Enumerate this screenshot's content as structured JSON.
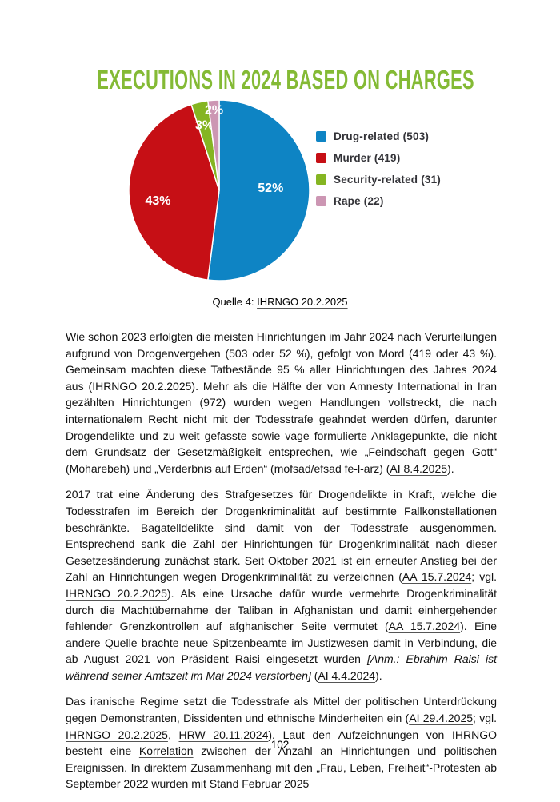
{
  "page_number": "102",
  "caption": {
    "prefix": "Quelle 4: ",
    "link": "IHRNGO 20.2.2025"
  },
  "chart_data": {
    "type": "pie",
    "title": "EXECUTIONS IN 2024 BASED ON CHARGES",
    "title_color": "#84ba35",
    "direction": "clockwise",
    "start_angle_deg": 0,
    "label_color": "#ffffff",
    "legend_position": "right",
    "legend_text_color": "#333338",
    "slices": [
      {
        "label": "Drug-related",
        "count": 503,
        "pct": 52,
        "color": "#0e84c4"
      },
      {
        "label": "Murder",
        "count": 419,
        "pct": 43,
        "color": "#c60f15"
      },
      {
        "label": "Security-related",
        "count": 31,
        "pct": 3,
        "color": "#85b522"
      },
      {
        "label": "Rape",
        "count": 22,
        "pct": 2,
        "color": "#cc96b3"
      }
    ]
  },
  "paragraphs": [
    {
      "segments": [
        {
          "t": "Wie schon 2023 erfolgten die meisten Hinrichtungen im Jahr 2024 nach Verurteilungen aufgrund von Drogenvergehen (503 oder 52 %), gefolgt von Mord (419 oder 43 %). Gemeinsam machten diese Tatbestände 95 % aller Hinrichtungen des Jahres 2024 aus ("
        },
        {
          "t": "IHRNGO 20.2.2025",
          "s": "link"
        },
        {
          "t": "). Mehr als die Hälfte der von Amnesty International in Iran gezählten "
        },
        {
          "t": "Hinrichtungen",
          "s": "link"
        },
        {
          "t": " (972) wurden we­gen Handlungen vollstreckt, die nach internationalem Recht nicht mit der Todesstrafe geahndet werden dürfen, darunter Drogendelikte und zu weit gefasste sowie vage formulierte Anklage­punkte, die nicht dem Grundsatz der Gesetzmäßigkeit entsprechen, wie „Feindschaft gegen Gott“ (Moharebeh) und „Verderbnis auf Erden“ (mofsad/efsad fe-l-arz) ("
        },
        {
          "t": "AI 8.4.2025",
          "s": "link"
        },
        {
          "t": ")."
        }
      ]
    },
    {
      "segments": [
        {
          "t": "2017 trat eine Änderung des Strafgesetzes für Drogendelikte in Kraft, welche die Todesstrafen im Bereich der Drogenkriminalität auf bestimmte Fallkonstellationen beschränkte. Bagatelldelikte sind damit von der Todesstrafe ausgenommen. Entsprechend sank die Zahl der Hinrichtungen für Drogenkriminalität nach dieser Gesetzesänderung zunächst stark. Seit Oktober 2021 ist ein erneuter Anstieg bei der Zahl an Hinrichtungen wegen Drogenkriminalität zu verzeichnen ("
        },
        {
          "t": "AA 15.7.2024",
          "s": "link"
        },
        {
          "t": "; vgl. "
        },
        {
          "t": "IHRNGO 20.2.2025",
          "s": "link"
        },
        {
          "t": "). Als eine Ursache dafür wurde vermehrte Drogenkriminali­tät durch die Machtübernahme der Taliban in Afghanistan und damit einhergehender fehlender Grenzkontrollen auf afghanischer Seite vermutet ("
        },
        {
          "t": "AA 15.7.2024",
          "s": "link"
        },
        {
          "t": "). Eine andere Quelle brachte neue Spitzenbeamte im Justizwesen damit in Verbindung, die ab August 2021 von Präsident Rai­si eingesetzt wurden "
        },
        {
          "t": "[Anm.: Ebrahim Raisi ist während seiner Amtszeit im Mai 2024 verstorben]",
          "s": "italic"
        },
        {
          "t": " ("
        },
        {
          "t": "AI 4.4.2024",
          "s": "link"
        },
        {
          "t": ")."
        }
      ]
    },
    {
      "segments": [
        {
          "t": "Das iranische Regime setzt die Todesstrafe als Mittel der politischen Unterdrückung gegen Demonstranten, Dissidenten und ethnische Minderheiten ein ("
        },
        {
          "t": "AI 29.4.2025",
          "s": "link"
        },
        {
          "t": "; vgl. "
        },
        {
          "t": "IHRNGO 20.2.2025",
          "s": "link"
        },
        {
          "t": ", "
        },
        {
          "t": "HRW 20.11.2024",
          "s": "link"
        },
        {
          "t": "). Laut den Aufzeichnungen von IHRNGO besteht eine "
        },
        {
          "t": "Korrelation",
          "s": "link"
        },
        {
          "t": " zwischen der Anzahl an Hinrichtungen und politischen Ereignissen. In direktem Zusammenhang mit den „Frau, Leben, Freiheit“-Protesten ab September 2022 wurden mit Stand Februar 2025"
        }
      ]
    }
  ]
}
